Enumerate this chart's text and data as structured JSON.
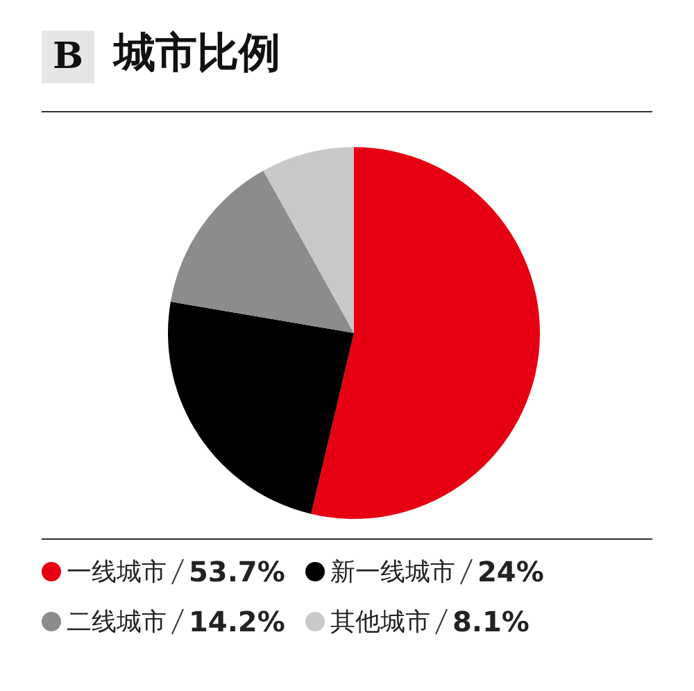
{
  "chart_data": {
    "type": "pie",
    "title": "城市比例",
    "annotations": [
      "B"
    ],
    "categories": [
      "一线城市",
      "新一线城市",
      "二线城市",
      "其他城市"
    ],
    "values": [
      53.7,
      24,
      14.2,
      8.1
    ],
    "value_labels": [
      "53.7%",
      "24%",
      "14.2%",
      "8.1%"
    ],
    "colors": [
      "#e60012",
      "#000000",
      "#8c8c8c",
      "#c9c9c9"
    ],
    "legend": "bottom"
  }
}
